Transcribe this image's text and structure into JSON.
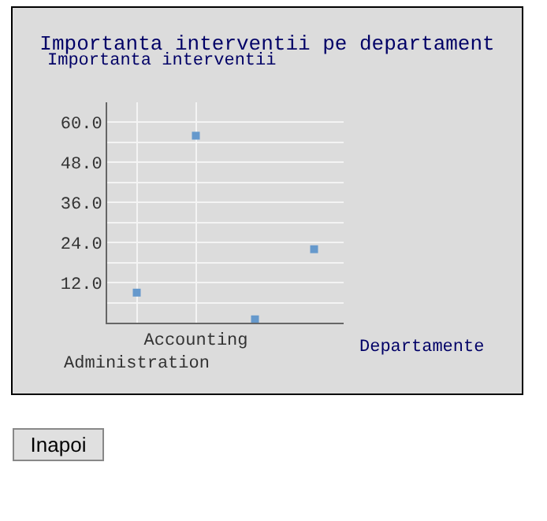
{
  "chart_data": {
    "type": "scatter",
    "title": "Importanta interventii pe departament",
    "ylabel": "Importanta interventii",
    "xlabel": "Departamente",
    "categories": [
      "Administration",
      "Accounting",
      null,
      null
    ],
    "series": [
      {
        "color": "#6699cc",
        "values": [
          9,
          56,
          1,
          22
        ]
      }
    ],
    "ylim": [
      0,
      66
    ],
    "yticks": [
      {
        "value": 6,
        "label": null
      },
      {
        "value": 12,
        "label": "12.0"
      },
      {
        "value": 18,
        "label": null
      },
      {
        "value": 24,
        "label": "24.0"
      },
      {
        "value": 30,
        "label": null
      },
      {
        "value": 36,
        "label": "36.0"
      },
      {
        "value": 42,
        "label": null
      },
      {
        "value": 48,
        "label": "48.0"
      },
      {
        "value": 54,
        "label": null
      },
      {
        "value": 60,
        "label": "60.0"
      }
    ],
    "grid": true,
    "marker": "square",
    "annotations": [
      "Inapoi"
    ]
  }
}
